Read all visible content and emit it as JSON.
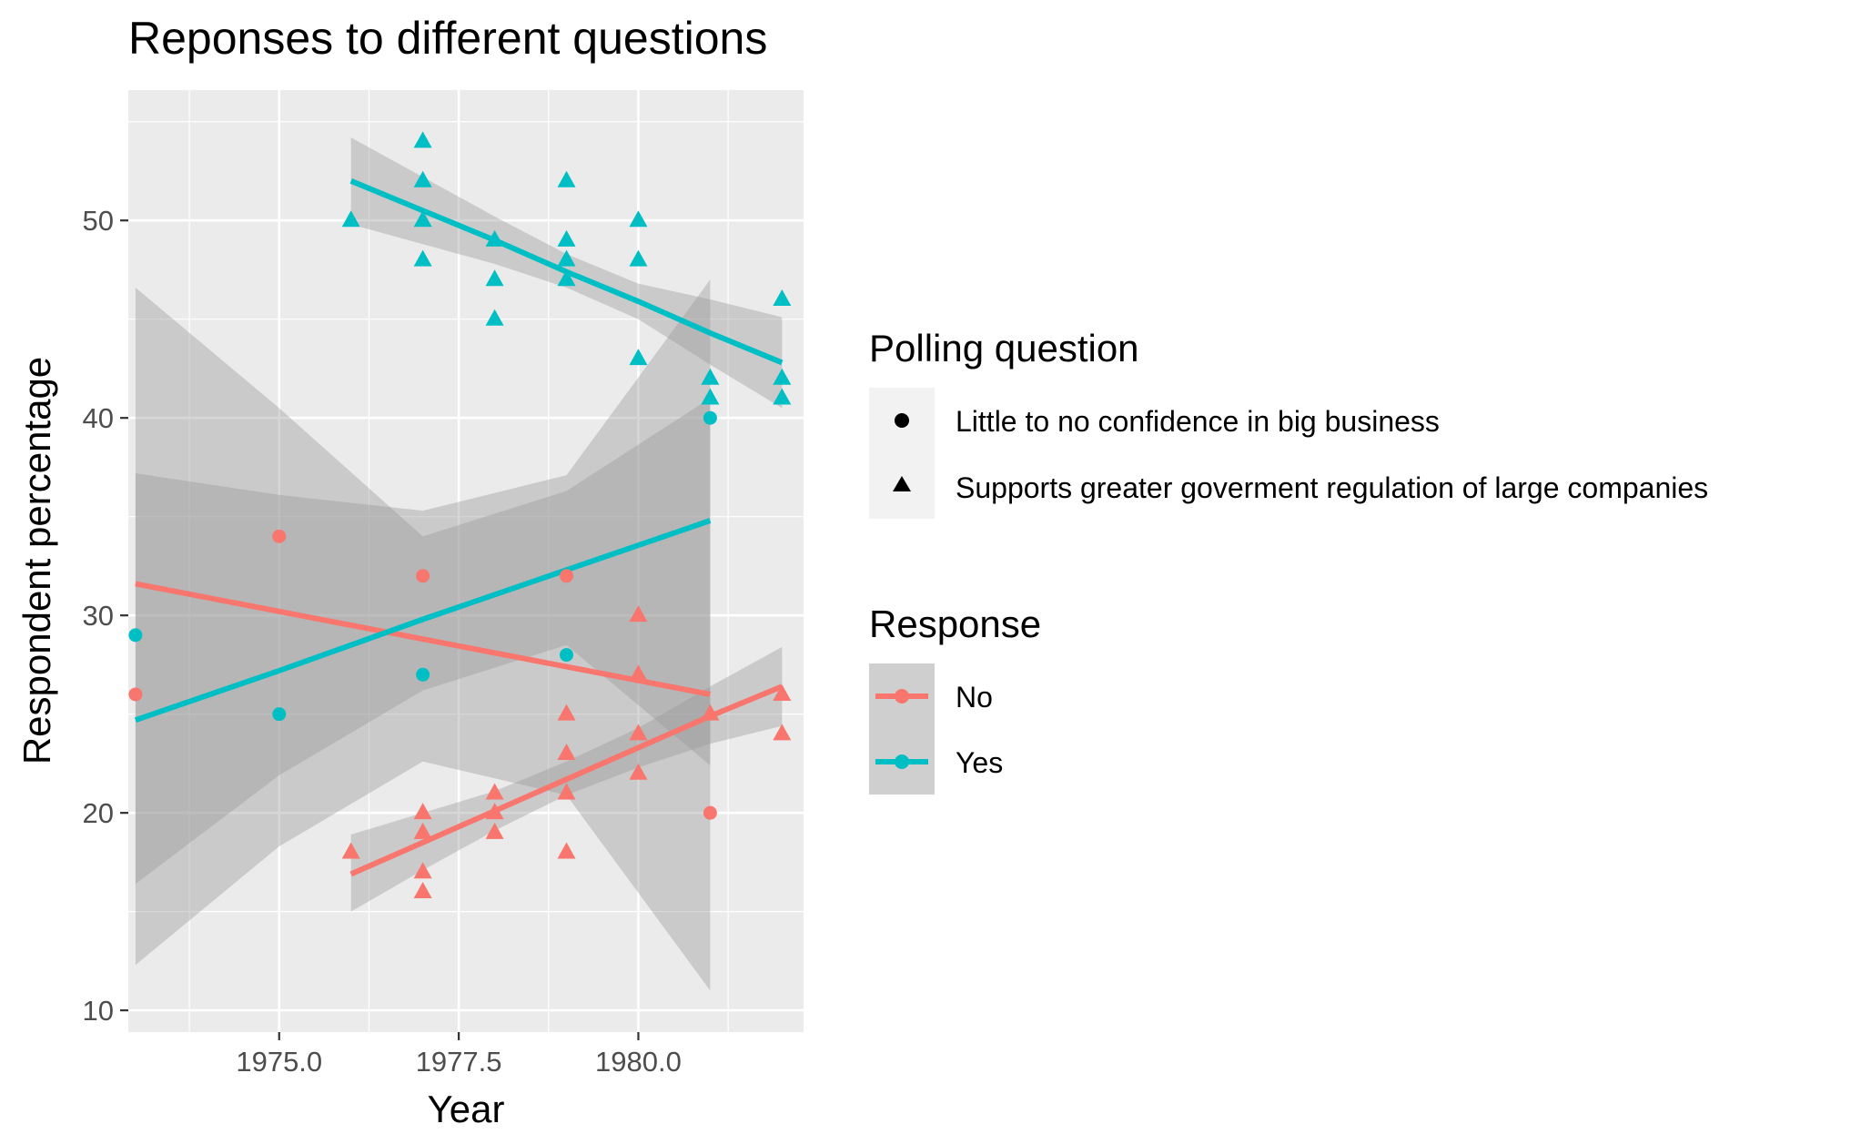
{
  "chart_data": {
    "type": "scatter",
    "title": "Reponses to different questions",
    "xlabel": "Year",
    "ylabel": "Respondent percentage",
    "xlim": [
      1972.9,
      1982.3
    ],
    "ylim": [
      8.9,
      56.6
    ],
    "x_ticks": [
      {
        "value": 1975.0,
        "label": "1975.0"
      },
      {
        "value": 1977.5,
        "label": "1977.5"
      },
      {
        "value": 1980.0,
        "label": "1980.0"
      }
    ],
    "y_ticks": [
      {
        "value": 10,
        "label": "10"
      },
      {
        "value": 20,
        "label": "20"
      },
      {
        "value": 30,
        "label": "30"
      },
      {
        "value": 40,
        "label": "40"
      },
      {
        "value": 50,
        "label": "50"
      }
    ],
    "grid": true,
    "legend_position": "right",
    "colors": {
      "No": "#F8766D",
      "Yes": "#00BFC4"
    },
    "shape_legend": {
      "title": "Polling question",
      "entries": [
        {
          "label": "Little to no confidence in big business",
          "shape": "circle"
        },
        {
          "label": "Supports greater goverment regulation of large companies",
          "shape": "triangle"
        }
      ]
    },
    "color_legend": {
      "title": "Response",
      "entries": [
        {
          "label": "No",
          "color": "#F8766D"
        },
        {
          "label": "Yes",
          "color": "#00BFC4"
        }
      ]
    },
    "points": [
      {
        "x": 1973,
        "y": 26,
        "response": "No",
        "question": "circle"
      },
      {
        "x": 1975,
        "y": 34,
        "response": "No",
        "question": "circle"
      },
      {
        "x": 1977,
        "y": 32,
        "response": "No",
        "question": "circle"
      },
      {
        "x": 1979,
        "y": 32,
        "response": "No",
        "question": "circle"
      },
      {
        "x": 1981,
        "y": 20,
        "response": "No",
        "question": "circle"
      },
      {
        "x": 1973,
        "y": 29,
        "response": "Yes",
        "question": "circle"
      },
      {
        "x": 1975,
        "y": 25,
        "response": "Yes",
        "question": "circle"
      },
      {
        "x": 1977,
        "y": 27,
        "response": "Yes",
        "question": "circle"
      },
      {
        "x": 1979,
        "y": 28,
        "response": "Yes",
        "question": "circle"
      },
      {
        "x": 1981,
        "y": 40,
        "response": "Yes",
        "question": "circle"
      },
      {
        "x": 1976,
        "y": 18,
        "response": "No",
        "question": "triangle"
      },
      {
        "x": 1977,
        "y": 16,
        "response": "No",
        "question": "triangle"
      },
      {
        "x": 1977,
        "y": 17,
        "response": "No",
        "question": "triangle"
      },
      {
        "x": 1977,
        "y": 19,
        "response": "No",
        "question": "triangle"
      },
      {
        "x": 1977,
        "y": 20,
        "response": "No",
        "question": "triangle"
      },
      {
        "x": 1978,
        "y": 19,
        "response": "No",
        "question": "triangle"
      },
      {
        "x": 1978,
        "y": 20,
        "response": "No",
        "question": "triangle"
      },
      {
        "x": 1978,
        "y": 21,
        "response": "No",
        "question": "triangle"
      },
      {
        "x": 1979,
        "y": 18,
        "response": "No",
        "question": "triangle"
      },
      {
        "x": 1979,
        "y": 21,
        "response": "No",
        "question": "triangle"
      },
      {
        "x": 1979,
        "y": 23,
        "response": "No",
        "question": "triangle"
      },
      {
        "x": 1979,
        "y": 25,
        "response": "No",
        "question": "triangle"
      },
      {
        "x": 1980,
        "y": 22,
        "response": "No",
        "question": "triangle"
      },
      {
        "x": 1980,
        "y": 24,
        "response": "No",
        "question": "triangle"
      },
      {
        "x": 1980,
        "y": 27,
        "response": "No",
        "question": "triangle"
      },
      {
        "x": 1980,
        "y": 30,
        "response": "No",
        "question": "triangle"
      },
      {
        "x": 1981,
        "y": 25,
        "response": "No",
        "question": "triangle"
      },
      {
        "x": 1982,
        "y": 24,
        "response": "No",
        "question": "triangle"
      },
      {
        "x": 1982,
        "y": 26,
        "response": "No",
        "question": "triangle"
      },
      {
        "x": 1976,
        "y": 50,
        "response": "Yes",
        "question": "triangle"
      },
      {
        "x": 1977,
        "y": 48,
        "response": "Yes",
        "question": "triangle"
      },
      {
        "x": 1977,
        "y": 50,
        "response": "Yes",
        "question": "triangle"
      },
      {
        "x": 1977,
        "y": 52,
        "response": "Yes",
        "question": "triangle"
      },
      {
        "x": 1977,
        "y": 54,
        "response": "Yes",
        "question": "triangle"
      },
      {
        "x": 1978,
        "y": 45,
        "response": "Yes",
        "question": "triangle"
      },
      {
        "x": 1978,
        "y": 47,
        "response": "Yes",
        "question": "triangle"
      },
      {
        "x": 1978,
        "y": 49,
        "response": "Yes",
        "question": "triangle"
      },
      {
        "x": 1979,
        "y": 47,
        "response": "Yes",
        "question": "triangle"
      },
      {
        "x": 1979,
        "y": 48,
        "response": "Yes",
        "question": "triangle"
      },
      {
        "x": 1979,
        "y": 49,
        "response": "Yes",
        "question": "triangle"
      },
      {
        "x": 1979,
        "y": 52,
        "response": "Yes",
        "question": "triangle"
      },
      {
        "x": 1980,
        "y": 43,
        "response": "Yes",
        "question": "triangle"
      },
      {
        "x": 1980,
        "y": 48,
        "response": "Yes",
        "question": "triangle"
      },
      {
        "x": 1980,
        "y": 50,
        "response": "Yes",
        "question": "triangle"
      },
      {
        "x": 1981,
        "y": 41,
        "response": "Yes",
        "question": "triangle"
      },
      {
        "x": 1981,
        "y": 42,
        "response": "Yes",
        "question": "triangle"
      },
      {
        "x": 1982,
        "y": 41,
        "response": "Yes",
        "question": "triangle"
      },
      {
        "x": 1982,
        "y": 42,
        "response": "Yes",
        "question": "triangle"
      },
      {
        "x": 1982,
        "y": 46,
        "response": "Yes",
        "question": "triangle"
      }
    ],
    "fits": [
      {
        "response": "No",
        "question": "circle",
        "x": [
          1973,
          1975,
          1977,
          1979,
          1981
        ],
        "fit": [
          31.6,
          30.2,
          28.8,
          27.4,
          26.0
        ],
        "lower": [
          12.3,
          18.3,
          22.6,
          20.9,
          11.0
        ],
        "upper": [
          46.6,
          40.5,
          34.0,
          36.3,
          41.0
        ]
      },
      {
        "response": "Yes",
        "question": "circle",
        "x": [
          1973,
          1975,
          1977,
          1979,
          1981
        ],
        "fit": [
          24.7,
          27.2,
          29.8,
          32.3,
          34.8
        ],
        "lower": [
          16.4,
          21.9,
          26.2,
          28.5,
          22.4
        ],
        "upper": [
          37.2,
          36.1,
          35.3,
          37.1,
          47.0
        ]
      },
      {
        "response": "No",
        "question": "triangle",
        "x": [
          1976,
          1977,
          1978,
          1979,
          1980,
          1981,
          1982
        ],
        "fit": [
          16.9,
          18.5,
          20.1,
          21.7,
          23.3,
          24.9,
          26.4
        ],
        "lower": [
          15.0,
          17.1,
          19.1,
          20.9,
          22.3,
          23.5,
          24.4
        ],
        "upper": [
          18.9,
          20.0,
          21.1,
          22.6,
          24.3,
          26.4,
          28.4
        ]
      },
      {
        "response": "Yes",
        "question": "triangle",
        "x": [
          1976,
          1977,
          1978,
          1979,
          1980,
          1981,
          1982
        ],
        "fit": [
          52.0,
          50.5,
          49.0,
          47.4,
          45.9,
          44.3,
          42.8
        ],
        "lower": [
          49.8,
          48.8,
          47.8,
          46.6,
          45.0,
          42.7,
          40.5
        ],
        "upper": [
          54.2,
          52.2,
          50.2,
          48.3,
          46.8,
          46.0,
          45.1
        ]
      }
    ]
  }
}
